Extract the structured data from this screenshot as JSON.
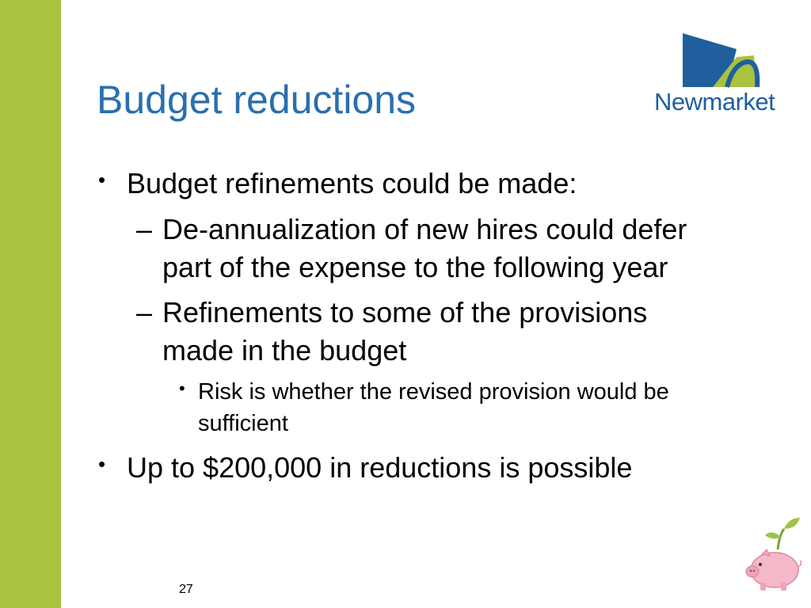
{
  "slide": {
    "title": "Budget reductions",
    "logo_text": "Newmarket",
    "bullets": [
      {
        "text": "Budget refinements could be made:",
        "subitems": [
          {
            "lines": [
              "De-annualization of new hires could defer",
              "part of the expense to the following year"
            ]
          },
          {
            "lines": [
              "Refinements to some of the provisions",
              "made in the budget"
            ],
            "subitems": [
              {
                "lines": [
                  "Risk is whether the revised provision would be",
                  "sufficient"
                ]
              }
            ]
          }
        ]
      },
      {
        "text": "Up to $200,000 in reductions is possible"
      }
    ],
    "bullet_symbol": "•",
    "dash_symbol": "–",
    "page_number": "27"
  },
  "colors": {
    "sidebar": "#a9c23f",
    "title": "#2a6fae",
    "logo_blue": "#1f5f9e",
    "logo_green": "#a9c23f",
    "pig": "#f4b8c8"
  },
  "icons": [
    "newmarket-logo-icon",
    "piggy-bank-sprout-icon"
  ]
}
